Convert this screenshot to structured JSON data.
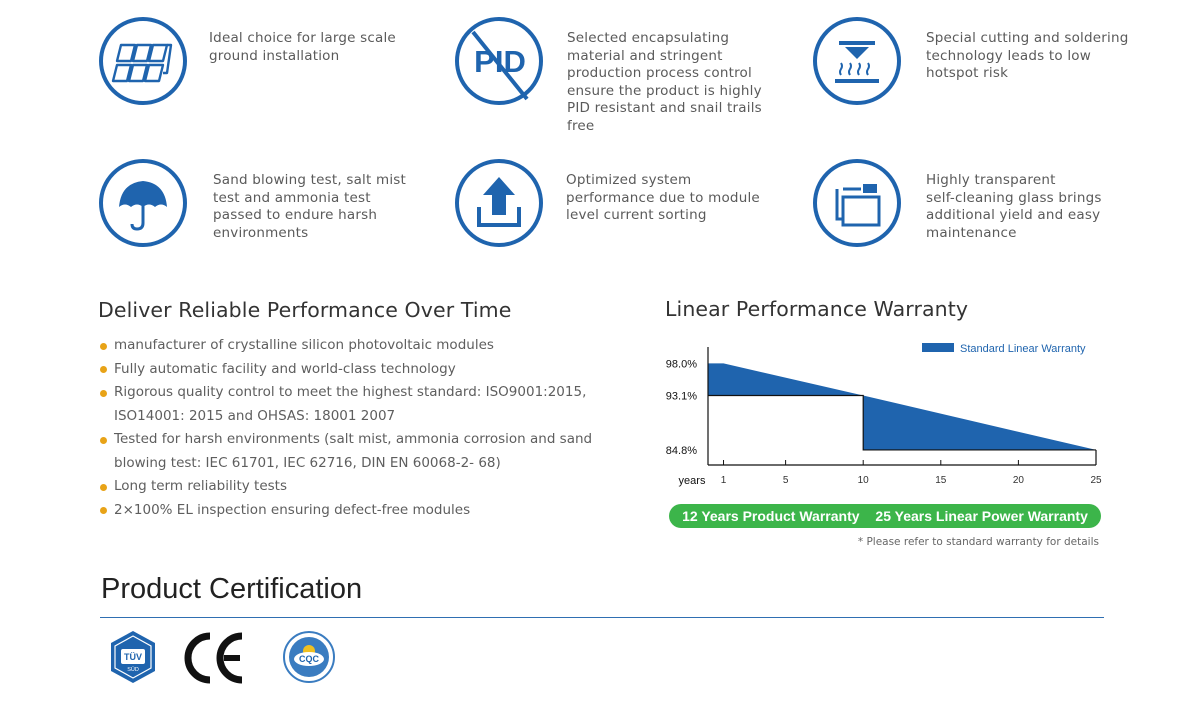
{
  "features": [
    {
      "text": "Ideal choice for large scale\nground installation",
      "icon": "panels-icon"
    },
    {
      "text": "Selected encapsulating\nmaterial and stringent\nproduction process control\nensure the product is highly\nPID resistant and snail trails\nfree",
      "icon": "pid-icon",
      "icon_label": "PID"
    },
    {
      "text": "Special cutting and soldering\ntechnology leads to low\nhotspot risk",
      "icon": "cutting-icon"
    },
    {
      "text": "Sand blowing test, salt mist\ntest and ammonia test\npassed to endure harsh\nenvironments",
      "icon": "umbrella-icon"
    },
    {
      "text": "Optimized system\nperformance due to module\nlevel current sorting",
      "icon": "upload-icon"
    },
    {
      "text": "Highly transparent\nself-cleaning glass brings\nadditional yield and easy\nmaintenance",
      "icon": "glass-icon"
    }
  ],
  "performance": {
    "title": "Deliver Reliable Performance Over Time",
    "bullets": [
      [
        "manufacturer of crystalline silicon photovoltaic modules"
      ],
      [
        "Fully automatic facility and world-class technology"
      ],
      [
        "Rigorous quality control to meet the highest standard: ISO9001:2015,",
        "ISO14001: 2015 and OHSAS: 18001 2007"
      ],
      [
        "Tested for harsh environments (salt mist, ammonia corrosion and sand",
        "blowing test: IEC 61701, IEC 62716, DIN EN 60068-2- 68)"
      ],
      [
        "Long term reliability tests"
      ],
      [
        "2×100% EL inspection ensuring defect-free modules"
      ]
    ]
  },
  "warranty": {
    "title": "Linear Performance Warranty",
    "product_label": "12 Years Product Warranty",
    "power_label": "25 Years Linear Power Warranty",
    "note": "* Please refer to standard warranty for details"
  },
  "chart_data": {
    "type": "area",
    "title": "Linear Performance Warranty",
    "xlabel": "years",
    "ylabel": "",
    "x_ticks": [
      1,
      5,
      10,
      15,
      20,
      25
    ],
    "y_ticks": [
      "98.0%",
      "93.1%",
      "84.8%"
    ],
    "xlim": [
      0,
      25
    ],
    "ylim": [
      82.5,
      100.5
    ],
    "series": [
      {
        "name": "Standard Linear Warranty",
        "color": "#1f64ae",
        "points": [
          [
            0,
            98.0
          ],
          [
            1,
            98.0
          ],
          [
            10,
            93.1
          ],
          [
            25,
            84.8
          ]
        ]
      }
    ],
    "step_baseline": {
      "points": [
        [
          0,
          93.1
        ],
        [
          10,
          93.1
        ],
        [
          10,
          84.8
        ],
        [
          25,
          84.8
        ]
      ]
    },
    "legend": "top-right",
    "grid": false
  },
  "certification": {
    "title": "Product Certification",
    "logos": [
      "TÜV SÜD",
      "CE",
      "CQC"
    ]
  },
  "colors": {
    "accent": "#1f64ae",
    "green": "#3cb54a",
    "bullet": "#e8a317",
    "rule": "#2f6fb2"
  }
}
